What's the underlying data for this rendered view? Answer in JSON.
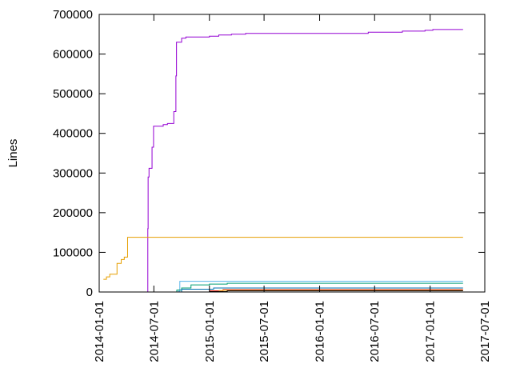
{
  "chart_data": {
    "type": "line",
    "title": "",
    "xlabel": "",
    "ylabel": "Lines",
    "x_type": "date",
    "xlim": [
      "2014-01-01",
      "2017-07-01"
    ],
    "ylim": [
      0,
      700000
    ],
    "grid": false,
    "legend": "none",
    "x_ticks": [
      "2014-01-01",
      "2014-07-01",
      "2015-01-01",
      "2015-07-01",
      "2016-01-01",
      "2016-07-01",
      "2017-01-01",
      "2017-07-01"
    ],
    "y_ticks": [
      "0",
      "100000",
      "200000",
      "300000",
      "400000",
      "500000",
      "600000",
      "700000"
    ],
    "series": [
      {
        "color": "#9400d3",
        "points": [
          [
            "2014-06-10",
            0
          ],
          [
            "2014-06-11",
            160000
          ],
          [
            "2014-06-12",
            290000
          ],
          [
            "2014-06-15",
            312000
          ],
          [
            "2014-06-25",
            365000
          ],
          [
            "2014-06-30",
            418000
          ],
          [
            "2014-08-01",
            422000
          ],
          [
            "2014-08-15",
            425000
          ],
          [
            "2014-09-05",
            455000
          ],
          [
            "2014-09-12",
            545000
          ],
          [
            "2014-09-14",
            630000
          ],
          [
            "2014-10-01",
            640000
          ],
          [
            "2014-10-15",
            643000
          ],
          [
            "2015-01-01",
            645000
          ],
          [
            "2015-02-01",
            648000
          ],
          [
            "2015-03-15",
            650000
          ],
          [
            "2015-05-01",
            652000
          ],
          [
            "2016-06-01",
            652000
          ],
          [
            "2016-06-10",
            655000
          ],
          [
            "2016-10-01",
            658000
          ],
          [
            "2016-12-15",
            660000
          ],
          [
            "2017-01-10",
            662000
          ],
          [
            "2017-04-20",
            662000
          ]
        ]
      },
      {
        "color": "#e69f00",
        "points": [
          [
            "2014-01-15",
            32000
          ],
          [
            "2014-01-25",
            38000
          ],
          [
            "2014-02-05",
            45000
          ],
          [
            "2014-03-01",
            72000
          ],
          [
            "2014-03-15",
            82000
          ],
          [
            "2014-03-25",
            88000
          ],
          [
            "2014-04-05",
            138000
          ],
          [
            "2017-04-20",
            138000
          ]
        ]
      },
      {
        "color": "#56b4e9",
        "points": [
          [
            "2014-09-01",
            0
          ],
          [
            "2014-09-20",
            2000
          ],
          [
            "2014-09-25",
            27000
          ],
          [
            "2017-04-20",
            27000
          ]
        ]
      },
      {
        "color": "#009e73",
        "points": [
          [
            "2014-09-01",
            0
          ],
          [
            "2014-09-15",
            5000
          ],
          [
            "2014-10-01",
            10000
          ],
          [
            "2014-11-01",
            18000
          ],
          [
            "2015-01-01",
            20000
          ],
          [
            "2015-03-01",
            22000
          ],
          [
            "2017-04-20",
            22000
          ]
        ]
      },
      {
        "color": "#0072b2",
        "points": [
          [
            "2014-09-01",
            0
          ],
          [
            "2014-10-01",
            7000
          ],
          [
            "2015-01-15",
            10000
          ],
          [
            "2017-04-20",
            10000
          ]
        ]
      },
      {
        "color": "#e51e10",
        "points": [
          [
            "2015-01-01",
            3000
          ],
          [
            "2015-02-15",
            6000
          ],
          [
            "2017-04-20",
            6000
          ]
        ]
      },
      {
        "color": "#f0e442",
        "points": [
          [
            "2015-02-01",
            4000
          ],
          [
            "2017-04-20",
            4000
          ]
        ]
      },
      {
        "color": "#000000",
        "points": [
          [
            "2015-01-01",
            1000
          ],
          [
            "2015-03-01",
            3000
          ],
          [
            "2017-04-20",
            3000
          ]
        ]
      }
    ]
  }
}
